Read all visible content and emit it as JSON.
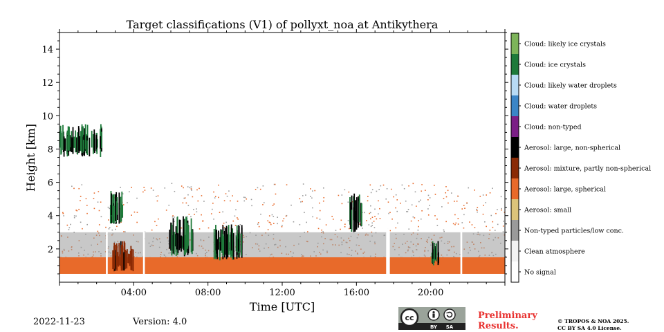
{
  "chart_data": {
    "type": "heatmap",
    "title": "Target classifications (V1) of pollyxt_noa at Antikythera",
    "xlabel": "Time [UTC]",
    "ylabel": "Height [km]",
    "xlim_hours": [
      0,
      24
    ],
    "ylim_km": [
      0,
      15
    ],
    "x_tick_labels": [
      "04:00",
      "08:00",
      "12:00",
      "16:00",
      "20:00"
    ],
    "x_tick_hours": [
      4,
      8,
      12,
      16,
      20
    ],
    "y_ticks": [
      2,
      4,
      6,
      8,
      10,
      12,
      14
    ],
    "classes": [
      {
        "label": "Cloud: likely ice crystals",
        "color": "#7db45a"
      },
      {
        "label": "Cloud: ice crystals",
        "color": "#1e7a3a"
      },
      {
        "label": "Cloud: likely water droplets",
        "color": "#b7dbf5"
      },
      {
        "label": "Cloud: water droplets",
        "color": "#3b86c7"
      },
      {
        "label": "Cloud: non-typed",
        "color": "#7b1f86"
      },
      {
        "label": "Aerosol: large, non-spherical",
        "color": "#000000"
      },
      {
        "label": "Aerosol: mixture, partly non-spherical",
        "color": "#8a2a05"
      },
      {
        "label": "Aerosol: large, spherical",
        "color": "#e86a2a"
      },
      {
        "label": "Aerosol: small",
        "color": "#dcc47a"
      },
      {
        "label": "Non-typed particles/low conc.",
        "color": "#9a9a9a"
      },
      {
        "label": "Clean atmosphere",
        "color": "#f2f2f2"
      },
      {
        "label": "No signal",
        "color": "#ffffff"
      }
    ],
    "features": [
      {
        "class": "Aerosol: large, spherical",
        "t_start": 0.0,
        "t_end": 24.0,
        "h_bottom": 0.5,
        "h_top": 1.5
      },
      {
        "class": "Non-typed particles/low conc.",
        "t_start": 0.0,
        "t_end": 24.0,
        "h_bottom": 1.5,
        "h_top": 3.0
      },
      {
        "class": "Cloud: ice crystals",
        "t_start": 0.0,
        "t_end": 2.3,
        "h_bottom": 7.5,
        "h_top": 9.5
      },
      {
        "class": "Cloud: ice crystals",
        "t_start": 2.7,
        "t_end": 3.4,
        "h_bottom": 3.5,
        "h_top": 5.5
      },
      {
        "class": "Aerosol: mixture, partly non-spherical",
        "t_start": 2.8,
        "t_end": 4.0,
        "h_bottom": 0.6,
        "h_top": 2.5
      },
      {
        "class": "Cloud: ice crystals",
        "t_start": 5.9,
        "t_end": 7.2,
        "h_bottom": 1.5,
        "h_top": 4.0
      },
      {
        "class": "Cloud: ice crystals",
        "t_start": 8.3,
        "t_end": 9.8,
        "h_bottom": 1.3,
        "h_top": 3.5
      },
      {
        "class": "Cloud: ice crystals",
        "t_start": 15.6,
        "t_end": 16.3,
        "h_bottom": 3.0,
        "h_top": 5.5
      },
      {
        "class": "Cloud: ice crystals",
        "t_start": 20.0,
        "t_end": 20.4,
        "h_bottom": 1.0,
        "h_top": 2.5
      }
    ],
    "no_signal_gaps_hours": [
      [
        2.5,
        2.6
      ],
      [
        4.5,
        4.6
      ],
      [
        17.6,
        17.8
      ],
      [
        21.6,
        21.7
      ]
    ],
    "grid": false,
    "legend": "colorbar-right"
  },
  "footer": {
    "date": "2022-11-23",
    "version": "Version: 4.0",
    "preliminary_line1": "Preliminary",
    "preliminary_line2": "Results.",
    "copyright_line1": "© TROPOS & NOA 2025.",
    "copyright_line2": "CC BY SA 4.0 License.",
    "cc_badge_text": [
      "cc",
      "BY",
      "SA"
    ]
  }
}
